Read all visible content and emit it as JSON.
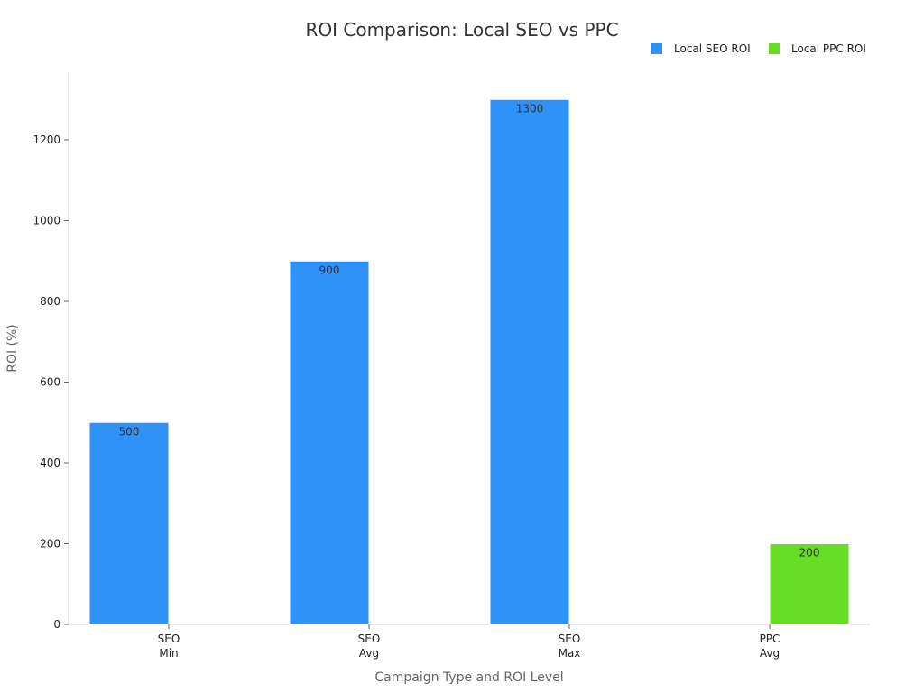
{
  "chart_data": {
    "type": "bar",
    "title": "ROI Comparison: Local SEO vs PPC",
    "xlabel": "Campaign Type and ROI Level",
    "ylabel": "ROI (%)",
    "ylim": [
      0,
      1350
    ],
    "yticks": [
      0,
      200,
      400,
      600,
      800,
      1000,
      1200
    ],
    "categories": [
      [
        "SEO",
        "Min"
      ],
      [
        "SEO",
        "Avg"
      ],
      [
        "SEO",
        "Max"
      ],
      [
        "PPC",
        "Avg"
      ]
    ],
    "series": [
      {
        "name": "Local SEO ROI",
        "color": "#2f92f8",
        "values": [
          500,
          900,
          1300,
          null
        ]
      },
      {
        "name": "Local PPC ROI",
        "color": "#67dc25",
        "values": [
          null,
          null,
          null,
          200
        ]
      }
    ],
    "legend_position": "top-right",
    "grid": false
  }
}
